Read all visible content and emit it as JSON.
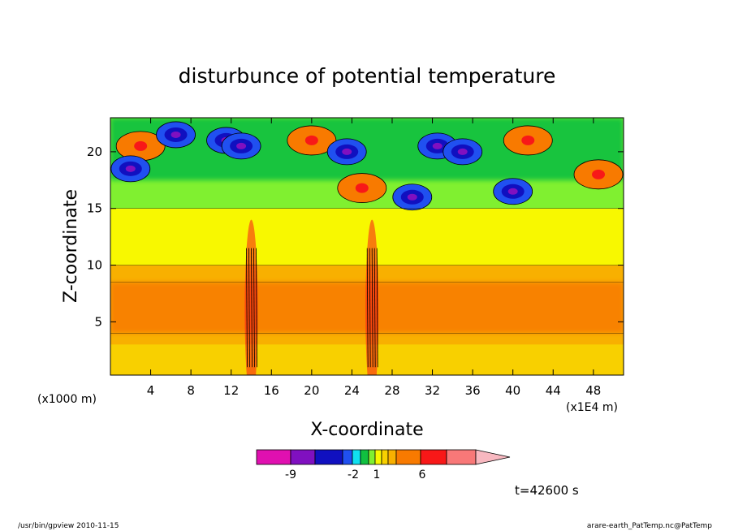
{
  "chart_data": {
    "type": "heatmap",
    "title": "disturbunce of potential temperature",
    "xlabel": "X-coordinate",
    "ylabel": "Z-coordinate",
    "x_units": "(x1E4 m)",
    "z_units": "(x1000 m)",
    "xlim": [
      0,
      51
    ],
    "zlim": [
      0.3,
      23
    ],
    "x_ticks": [
      "4",
      "8",
      "12",
      "16",
      "20",
      "24",
      "28",
      "32",
      "36",
      "40",
      "44",
      "48"
    ],
    "z_ticks": [
      "5",
      "10",
      "15",
      "20"
    ],
    "colorbar": {
      "label_ticks": [
        "-9",
        "-2",
        "1",
        "6"
      ],
      "colors": [
        "#e010b0",
        "#8010c0",
        "#1010c0",
        "#2050f0",
        "#10e0f0",
        "#10c040",
        "#80f030",
        "#f8f800",
        "#f8d000",
        "#f8b000",
        "#f87a00",
        "#f81818",
        "#f87878",
        "#f8b8c0"
      ]
    },
    "features": {
      "upper_layer_z": [
        15,
        23
      ],
      "warm_core_z": [
        3,
        10
      ],
      "plume_x": [
        14,
        26
      ],
      "warm_blobs_upper": [
        {
          "x": 3,
          "z": 20.5
        },
        {
          "x": 20,
          "z": 21
        },
        {
          "x": 41.5,
          "z": 21
        },
        {
          "x": 48.5,
          "z": 18
        },
        {
          "x": 25,
          "z": 16.8
        }
      ],
      "cold_blobs_upper": [
        {
          "x": 6.5,
          "z": 21.5
        },
        {
          "x": 11.5,
          "z": 21
        },
        {
          "x": 13,
          "z": 20.5
        },
        {
          "x": 32.5,
          "z": 20.5
        },
        {
          "x": 35,
          "z": 20
        },
        {
          "x": 23.5,
          "z": 20
        },
        {
          "x": 2,
          "z": 18.5
        },
        {
          "x": 30,
          "z": 16
        },
        {
          "x": 40,
          "z": 16.5
        }
      ]
    }
  },
  "labels": {
    "time": "t=42600 s",
    "footer_left": "/usr/bin/gpview   2010-11-15",
    "footer_right": "arare-earth_PatTemp.nc@PatTemp"
  }
}
